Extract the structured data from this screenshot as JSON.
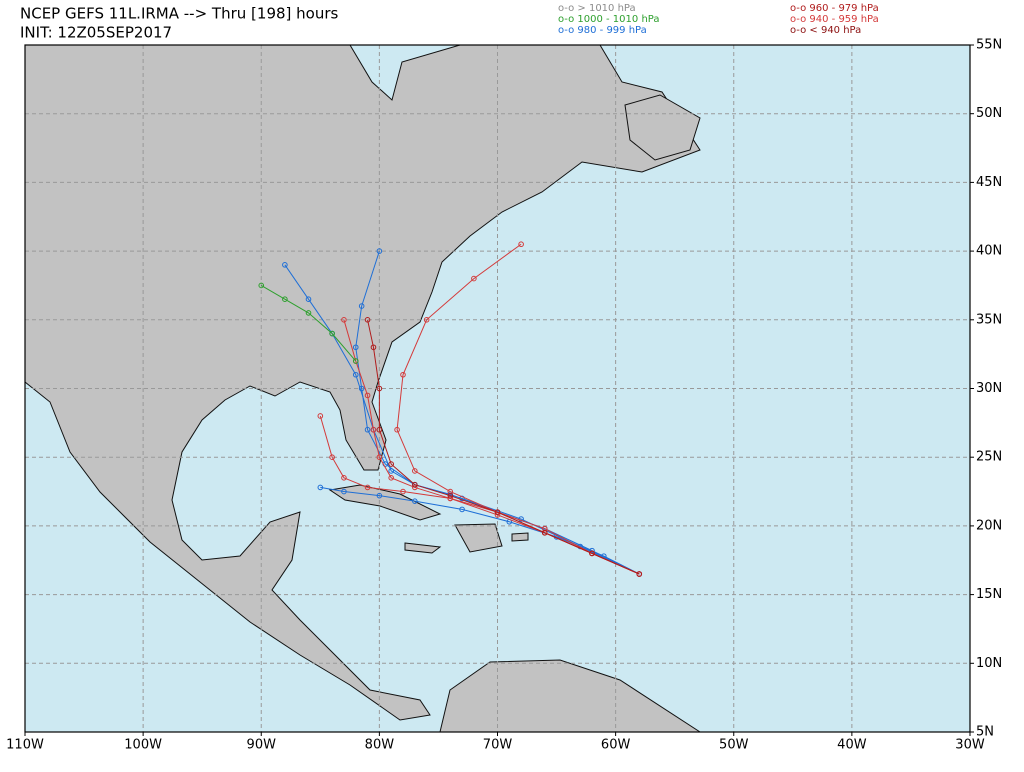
{
  "map": {
    "title": "NCEP GEFS 11L.IRMA --> Thru [198] hours",
    "init": "INIT: 12Z05SEP2017",
    "legend": [
      {
        "label": "o-o > 1010 hPa",
        "color": "#8c8c8c"
      },
      {
        "label": "o-o 1000 - 1010 hPa",
        "color": "#2ea02e"
      },
      {
        "label": "o-o 980 - 999 hPa",
        "color": "#1f6fd6"
      },
      {
        "label": "o-o 960 - 979 hPa",
        "color": "#b01c1c"
      },
      {
        "label": "o-o 940 - 959 hPa",
        "color": "#d43a3a"
      },
      {
        "label": "o-o < 940 hPa",
        "color": "#8c1010"
      }
    ],
    "xlim": [
      -110,
      -30
    ],
    "ylim": [
      5,
      55
    ],
    "xticks": [
      {
        "value": -110,
        "label": "110W"
      },
      {
        "value": -100,
        "label": "100W"
      },
      {
        "value": -90,
        "label": "90W"
      },
      {
        "value": -80,
        "label": "80W"
      },
      {
        "value": -70,
        "label": "70W"
      },
      {
        "value": -60,
        "label": "60W"
      },
      {
        "value": -50,
        "label": "50W"
      },
      {
        "value": -40,
        "label": "40W"
      },
      {
        "value": -30,
        "label": "30W"
      }
    ],
    "yticks": [
      {
        "value": 5,
        "label": "5N"
      },
      {
        "value": 10,
        "label": "10N"
      },
      {
        "value": 15,
        "label": "15N"
      },
      {
        "value": 20,
        "label": "20N"
      },
      {
        "value": 25,
        "label": "25N"
      },
      {
        "value": 30,
        "label": "30N"
      },
      {
        "value": 35,
        "label": "35N"
      },
      {
        "value": 40,
        "label": "40N"
      },
      {
        "value": 45,
        "label": "45N"
      },
      {
        "value": 50,
        "label": "50N"
      },
      {
        "value": 55,
        "label": "55N"
      }
    ],
    "grid": true,
    "tracks": [
      {
        "color": "#1f6fd6",
        "lon": [
          -58,
          -62,
          -66,
          -70,
          -74,
          -77,
          -79,
          -80.5,
          -82,
          -84,
          -86,
          -88
        ],
        "lat": [
          16.5,
          18.2,
          19.8,
          21,
          22.3,
          23,
          24,
          27,
          31,
          34,
          36.5,
          39
        ]
      },
      {
        "color": "#1f6fd6",
        "lon": [
          -58,
          -63,
          -68,
          -73,
          -77,
          -79.5,
          -81,
          -81.5,
          -82,
          -81.5,
          -80
        ],
        "lat": [
          16.5,
          18.5,
          20.5,
          22,
          23,
          24.5,
          27,
          30,
          33,
          36,
          40
        ]
      },
      {
        "color": "#1f6fd6",
        "lon": [
          -58,
          -61,
          -65,
          -69,
          -73,
          -77,
          -80,
          -83,
          -85
        ],
        "lat": [
          16.5,
          17.8,
          19.2,
          20.3,
          21.2,
          21.8,
          22.2,
          22.5,
          22.8
        ]
      },
      {
        "color": "#d43a3a",
        "lon": [
          -58,
          -62,
          -66,
          -70,
          -74,
          -77,
          -79,
          -80,
          -80.5,
          -81,
          -82,
          -83
        ],
        "lat": [
          16.5,
          18,
          19.5,
          20.8,
          22,
          22.8,
          23.5,
          25,
          27,
          29.5,
          32,
          35
        ]
      },
      {
        "color": "#d43a3a",
        "lon": [
          -58,
          -62,
          -66,
          -70,
          -74,
          -78,
          -81,
          -83,
          -84,
          -85
        ],
        "lat": [
          16.5,
          18,
          19.8,
          21,
          22,
          22.5,
          22.8,
          23.5,
          25,
          28
        ]
      },
      {
        "color": "#d43a3a",
        "lon": [
          -58,
          -62,
          -66,
          -70,
          -74,
          -77,
          -78.5,
          -78,
          -76,
          -72,
          -68
        ],
        "lat": [
          16.5,
          18,
          19.5,
          21,
          22.5,
          24,
          27,
          31,
          35,
          38,
          40.5
        ]
      },
      {
        "color": "#b01c1c",
        "lon": [
          -58,
          -62,
          -66,
          -70,
          -74,
          -77,
          -79,
          -80,
          -80,
          -80.5,
          -81
        ],
        "lat": [
          16.5,
          18,
          19.5,
          21,
          22.2,
          23,
          24.5,
          27,
          30,
          33,
          35
        ]
      },
      {
        "color": "#2ea02e",
        "lon": [
          -82,
          -84,
          -86,
          -88,
          -90
        ],
        "lat": [
          32,
          34,
          35.5,
          36.5,
          37.5
        ]
      }
    ]
  }
}
